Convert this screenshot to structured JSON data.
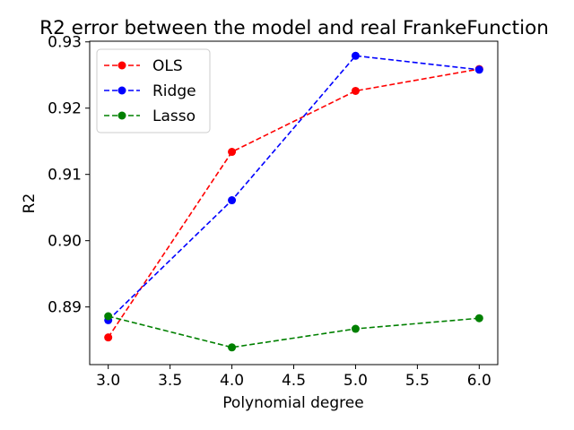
{
  "chart_data": {
    "type": "line",
    "title": "R2 error between the model and real FrankeFunction",
    "xlabel": "Polynomial degree",
    "ylabel": "R2",
    "x": [
      3.0,
      4.0,
      5.0,
      6.0
    ],
    "xlim": [
      2.85,
      6.15
    ],
    "ylim": [
      0.8813,
      0.9301
    ],
    "xticks": [
      "3.0",
      "3.5",
      "4.0",
      "4.5",
      "5.0",
      "5.5",
      "6.0"
    ],
    "xtick_values": [
      3.0,
      3.5,
      4.0,
      4.5,
      5.0,
      5.5,
      6.0
    ],
    "yticks": [
      "0.89",
      "0.90",
      "0.91",
      "0.92",
      "0.93"
    ],
    "ytick_values": [
      0.89,
      0.9,
      0.91,
      0.92,
      0.93
    ],
    "grid": false,
    "legend_position": "top-left",
    "series": [
      {
        "name": "OLS",
        "color": "#ff0000",
        "values": [
          0.8854,
          0.9134,
          0.9226,
          0.9259
        ]
      },
      {
        "name": "Ridge",
        "color": "#0000ff",
        "values": [
          0.888,
          0.9061,
          0.9279,
          0.9258
        ]
      },
      {
        "name": "Lasso",
        "color": "#008000",
        "values": [
          0.8886,
          0.8839,
          0.8867,
          0.8883
        ]
      }
    ]
  }
}
